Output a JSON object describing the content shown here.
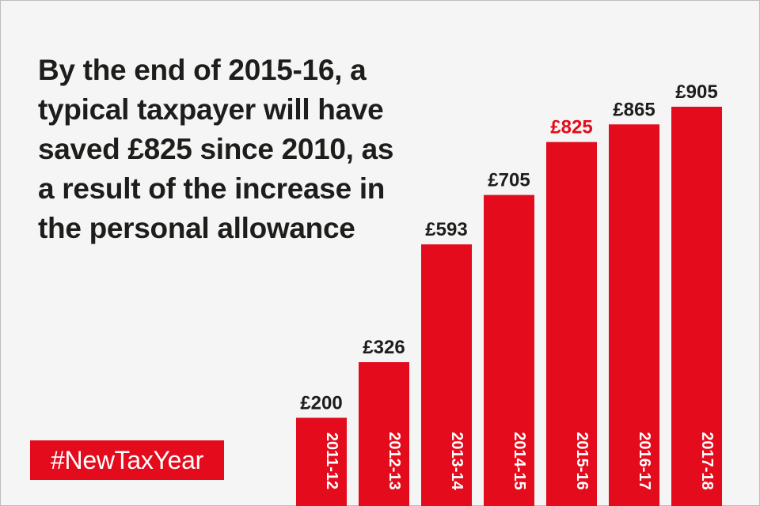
{
  "headline": "By the end of 2015-16, a typical taxpayer will have saved £825 since 2010, as a result of the increase in the personal allowance",
  "hashtag": "#NewTaxYear",
  "colors": {
    "bar": "#e30b1c",
    "text": "#1d1d1b",
    "highlight_label": "#e30b1c",
    "background": "#f5f5f5"
  },
  "chart_data": {
    "type": "bar",
    "categories": [
      "2011-12",
      "2012-13",
      "2013-14",
      "2014-15",
      "2015-16",
      "2016-17",
      "2017-18"
    ],
    "values": [
      200,
      326,
      593,
      705,
      825,
      865,
      905
    ],
    "value_labels": [
      "£200",
      "£326",
      "£593",
      "£705",
      "£825",
      "£865",
      "£905"
    ],
    "highlight_index": 4,
    "ylim": [
      0,
      905
    ],
    "grid": false,
    "legend": "none"
  }
}
